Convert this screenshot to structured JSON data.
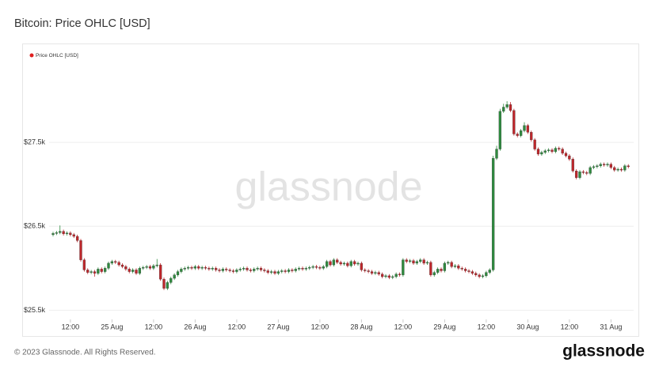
{
  "chart_data": {
    "type": "candlestick",
    "title": "Bitcoin: Price OHLC [USD]",
    "watermark": "glassnode",
    "footer": "© 2023 Glassnode. All Rights Reserved.",
    "logo": "glassnode",
    "x": [
      "24 Aug 07:00",
      "24 Aug 08:00",
      "24 Aug 09:00",
      "24 Aug 10:00",
      "24 Aug 11:00",
      "24 Aug 12:00",
      "24 Aug 13:00",
      "24 Aug 14:00",
      "24 Aug 15:00",
      "24 Aug 16:00",
      "24 Aug 17:00",
      "24 Aug 18:00",
      "24 Aug 19:00",
      "24 Aug 20:00",
      "24 Aug 21:00",
      "24 Aug 22:00",
      "24 Aug 23:00",
      "25 Aug 00:00",
      "25 Aug 01:00",
      "25 Aug 02:00",
      "25 Aug 03:00",
      "25 Aug 04:00",
      "25 Aug 05:00",
      "25 Aug 06:00",
      "25 Aug 07:00",
      "25 Aug 08:00",
      "25 Aug 09:00",
      "25 Aug 10:00",
      "25 Aug 11:00",
      "25 Aug 12:00",
      "25 Aug 13:00",
      "25 Aug 14:00",
      "25 Aug 15:00",
      "25 Aug 16:00",
      "25 Aug 17:00",
      "25 Aug 18:00",
      "25 Aug 19:00",
      "25 Aug 20:00",
      "25 Aug 21:00",
      "25 Aug 22:00",
      "25 Aug 23:00",
      "26 Aug 00:00",
      "26 Aug 01:00",
      "26 Aug 02:00",
      "26 Aug 03:00",
      "26 Aug 04:00",
      "26 Aug 05:00",
      "26 Aug 06:00",
      "26 Aug 07:00",
      "26 Aug 08:00",
      "26 Aug 09:00",
      "26 Aug 10:00",
      "26 Aug 11:00",
      "26 Aug 12:00",
      "26 Aug 13:00",
      "26 Aug 14:00",
      "26 Aug 15:00",
      "26 Aug 16:00",
      "26 Aug 17:00",
      "26 Aug 18:00",
      "26 Aug 19:00",
      "26 Aug 20:00",
      "26 Aug 21:00",
      "26 Aug 22:00",
      "26 Aug 23:00",
      "27 Aug 00:00",
      "27 Aug 01:00",
      "27 Aug 02:00",
      "27 Aug 03:00",
      "27 Aug 04:00",
      "27 Aug 05:00",
      "27 Aug 06:00",
      "27 Aug 07:00",
      "27 Aug 08:00",
      "27 Aug 09:00",
      "27 Aug 10:00",
      "27 Aug 11:00",
      "27 Aug 12:00",
      "27 Aug 13:00",
      "27 Aug 14:00",
      "27 Aug 15:00",
      "27 Aug 16:00",
      "27 Aug 17:00",
      "27 Aug 18:00",
      "27 Aug 19:00",
      "27 Aug 20:00",
      "27 Aug 21:00",
      "27 Aug 22:00",
      "27 Aug 23:00",
      "28 Aug 00:00",
      "28 Aug 01:00",
      "28 Aug 02:00",
      "28 Aug 03:00",
      "28 Aug 04:00",
      "28 Aug 05:00",
      "28 Aug 06:00",
      "28 Aug 07:00",
      "28 Aug 08:00",
      "28 Aug 09:00",
      "28 Aug 10:00",
      "28 Aug 11:00",
      "28 Aug 12:00",
      "28 Aug 13:00",
      "28 Aug 14:00",
      "28 Aug 15:00",
      "28 Aug 16:00",
      "28 Aug 17:00",
      "28 Aug 18:00",
      "28 Aug 19:00",
      "28 Aug 20:00",
      "28 Aug 21:00",
      "28 Aug 22:00",
      "28 Aug 23:00",
      "29 Aug 00:00",
      "29 Aug 01:00",
      "29 Aug 02:00",
      "29 Aug 03:00",
      "29 Aug 04:00",
      "29 Aug 05:00",
      "29 Aug 06:00",
      "29 Aug 07:00",
      "29 Aug 08:00",
      "29 Aug 09:00",
      "29 Aug 10:00",
      "29 Aug 11:00",
      "29 Aug 12:00",
      "29 Aug 13:00",
      "29 Aug 14:00",
      "29 Aug 15:00",
      "29 Aug 16:00",
      "29 Aug 17:00",
      "29 Aug 18:00",
      "29 Aug 19:00",
      "29 Aug 20:00",
      "29 Aug 21:00",
      "29 Aug 22:00",
      "29 Aug 23:00",
      "30 Aug 00:00",
      "30 Aug 01:00",
      "30 Aug 02:00",
      "30 Aug 03:00",
      "30 Aug 04:00",
      "30 Aug 05:00",
      "30 Aug 06:00",
      "30 Aug 07:00",
      "30 Aug 08:00",
      "30 Aug 09:00",
      "30 Aug 10:00",
      "30 Aug 11:00",
      "30 Aug 12:00",
      "30 Aug 13:00",
      "30 Aug 14:00",
      "30 Aug 15:00",
      "30 Aug 16:00",
      "30 Aug 17:00",
      "30 Aug 18:00",
      "30 Aug 19:00",
      "30 Aug 20:00",
      "30 Aug 21:00",
      "30 Aug 22:00",
      "30 Aug 23:00",
      "31 Aug 00:00",
      "31 Aug 01:00",
      "31 Aug 02:00",
      "31 Aug 03:00",
      "31 Aug 04:00",
      "31 Aug 05:00"
    ],
    "series": [
      {
        "name": "Price OHLC [USD]",
        "color": "#e02020",
        "up_color": "#2e8b3e",
        "down_color": "#c0262b",
        "open": [
          26400,
          26415,
          26425,
          26440,
          26410,
          26420,
          26400,
          26380,
          26330,
          26100,
          25980,
          25950,
          25960,
          25940,
          25990,
          25960,
          26000,
          26060,
          26080,
          26070,
          26040,
          26020,
          25990,
          25960,
          25980,
          25940,
          26000,
          26010,
          26020,
          26000,
          26030,
          26040,
          25870,
          25760,
          25830,
          25880,
          25920,
          25960,
          25990,
          26000,
          26010,
          26000,
          26020,
          26000,
          26010,
          26000,
          25990,
          26000,
          25980,
          25970,
          25990,
          25980,
          25970,
          25960,
          25980,
          25990,
          26000,
          25980,
          25970,
          25990,
          26000,
          25980,
          25970,
          25950,
          25960,
          25940,
          25960,
          25970,
          25960,
          25980,
          25970,
          25990,
          26000,
          25990,
          26000,
          26010,
          26020,
          26010,
          26000,
          26020,
          26080,
          26040,
          26100,
          26070,
          26050,
          26060,
          26030,
          26080,
          26050,
          26060,
          25980,
          25970,
          25960,
          25940,
          25950,
          25930,
          25900,
          25910,
          25890,
          25900,
          25930,
          25920,
          26100,
          26080,
          26090,
          26060,
          26080,
          26100,
          26060,
          26070,
          25920,
          25950,
          25990,
          25970,
          26060,
          26070,
          26020,
          26030,
          26000,
          25990,
          25970,
          25960,
          25940,
          25920,
          25900,
          25910,
          25950,
          25980,
          27310,
          27420,
          27870,
          27920,
          27950,
          27880,
          27600,
          27580,
          27640,
          27700,
          27620,
          27530,
          27420,
          27360,
          27380,
          27400,
          27410,
          27390,
          27430,
          27420,
          27370,
          27340,
          27300,
          27160,
          27080,
          27150,
          27140,
          27130,
          27200,
          27210,
          27220,
          27240,
          27230,
          27240,
          27200,
          27170,
          27180,
          27170,
          27220
        ],
        "high": [
          26435,
          26445,
          26510,
          26460,
          26440,
          26440,
          26420,
          26400,
          26350,
          26120,
          26000,
          25980,
          25980,
          26010,
          26010,
          26020,
          26080,
          26100,
          26100,
          26090,
          26060,
          26040,
          26010,
          26000,
          26000,
          26020,
          26030,
          26040,
          26040,
          26050,
          26110,
          26060,
          25890,
          25850,
          25900,
          25940,
          25980,
          26010,
          26020,
          26030,
          26030,
          26040,
          26040,
          26030,
          26030,
          26020,
          26020,
          26020,
          26000,
          26010,
          26010,
          26000,
          25990,
          26000,
          26010,
          26020,
          26020,
          26000,
          26010,
          26020,
          26020,
          26000,
          25990,
          25980,
          25980,
          25980,
          25990,
          25990,
          26000,
          26000,
          26010,
          26020,
          26020,
          26020,
          26030,
          26040,
          26040,
          26030,
          26040,
          26100,
          26100,
          26120,
          26120,
          26090,
          26080,
          26080,
          26100,
          26100,
          26080,
          26080,
          26000,
          25990,
          25980,
          25970,
          25970,
          25950,
          25930,
          25930,
          25920,
          25950,
          25950,
          26120,
          26120,
          26110,
          26110,
          26100,
          26120,
          26120,
          26090,
          26090,
          25970,
          26010,
          26010,
          26080,
          26090,
          26090,
          26050,
          26050,
          26020,
          26010,
          25990,
          25980,
          25960,
          25940,
          25930,
          25970,
          26000,
          27340,
          27460,
          27900,
          27960,
          27990,
          27980,
          27900,
          27620,
          27660,
          27740,
          27720,
          27640,
          27550,
          27440,
          27400,
          27420,
          27430,
          27430,
          27450,
          27450,
          27440,
          27390,
          27360,
          27320,
          27180,
          27170,
          27170,
          27160,
          27220,
          27230,
          27240,
          27260,
          27260,
          27260,
          27260,
          27220,
          27200,
          27200,
          27240,
          27240
        ],
        "low": [
          26380,
          26395,
          26405,
          26390,
          26390,
          26380,
          26360,
          26310,
          26080,
          25960,
          25930,
          25930,
          25900,
          25920,
          25940,
          25940,
          25980,
          26040,
          26050,
          26020,
          26000,
          25970,
          25940,
          25940,
          25920,
          25920,
          25980,
          25990,
          25980,
          25980,
          26010,
          25850,
          25740,
          25740,
          25810,
          25860,
          25900,
          25940,
          25970,
          25980,
          25980,
          25980,
          25980,
          25980,
          25980,
          25970,
          25970,
          25960,
          25950,
          25950,
          25960,
          25950,
          25940,
          25940,
          25960,
          25970,
          25960,
          25950,
          25950,
          25970,
          25960,
          25950,
          25930,
          25930,
          25920,
          25920,
          25940,
          25940,
          25940,
          25950,
          25950,
          25970,
          25970,
          25970,
          25980,
          25990,
          25990,
          25980,
          25980,
          26000,
          26020,
          26020,
          26050,
          26030,
          26030,
          26010,
          26010,
          26030,
          26030,
          25960,
          25950,
          25940,
          25920,
          25920,
          25910,
          25880,
          25880,
          25870,
          25870,
          25880,
          25900,
          25900,
          26060,
          26060,
          26040,
          26040,
          26060,
          26040,
          26040,
          25900,
          25900,
          25930,
          25950,
          25950,
          26040,
          26000,
          26000,
          25980,
          25970,
          25950,
          25940,
          25920,
          25900,
          25880,
          25880,
          25890,
          25930,
          25960,
          27290,
          27400,
          27850,
          27900,
          27860,
          27580,
          27560,
          27560,
          27620,
          27600,
          27510,
          27400,
          27340,
          27340,
          27360,
          27380,
          27370,
          27370,
          27400,
          27350,
          27320,
          27280,
          27140,
          27060,
          27060,
          27120,
          27110,
          27110,
          27180,
          27190,
          27200,
          27210,
          27210,
          27180,
          27150,
          27150,
          27150,
          27150,
          27190
        ],
        "close": [
          26415,
          26425,
          26440,
          26410,
          26420,
          26400,
          26380,
          26330,
          26100,
          25980,
          25950,
          25960,
          25940,
          25990,
          25960,
          26000,
          26060,
          26080,
          26070,
          26040,
          26020,
          25990,
          25960,
          25980,
          25940,
          26000,
          26010,
          26020,
          26000,
          26030,
          26040,
          25870,
          25760,
          25830,
          25880,
          25920,
          25960,
          25990,
          26000,
          26010,
          26000,
          26020,
          26000,
          26010,
          26000,
          25990,
          26000,
          25980,
          25970,
          25990,
          25980,
          25970,
          25960,
          25980,
          25990,
          26000,
          25980,
          25970,
          25990,
          26000,
          25980,
          25970,
          25950,
          25960,
          25940,
          25960,
          25970,
          25960,
          25980,
          25970,
          25990,
          26000,
          25990,
          26000,
          26010,
          26020,
          26010,
          26000,
          26020,
          26080,
          26040,
          26100,
          26070,
          26050,
          26060,
          26030,
          26080,
          26050,
          26060,
          25980,
          25970,
          25960,
          25940,
          25950,
          25930,
          25900,
          25910,
          25890,
          25900,
          25930,
          25920,
          26100,
          26080,
          26090,
          26060,
          26080,
          26100,
          26060,
          26070,
          25920,
          25950,
          25990,
          25970,
          26060,
          26070,
          26020,
          26030,
          26000,
          25990,
          25970,
          25960,
          25940,
          25920,
          25900,
          25910,
          25950,
          25980,
          27310,
          27420,
          27870,
          27920,
          27950,
          27880,
          27600,
          27580,
          27640,
          27700,
          27620,
          27530,
          27420,
          27360,
          27380,
          27400,
          27410,
          27390,
          27430,
          27420,
          27370,
          27340,
          27300,
          27160,
          27080,
          27150,
          27140,
          27130,
          27200,
          27210,
          27220,
          27240,
          27230,
          27240,
          27200,
          27170,
          27180,
          27170,
          27220,
          27210
        ]
      }
    ],
    "ylim": [
      25400,
      28650
    ],
    "yticks": [
      {
        "value": 25500,
        "label": "$25.5k"
      },
      {
        "value": 26500,
        "label": "$26.5k"
      },
      {
        "value": 27500,
        "label": "$27.5k"
      }
    ],
    "xticks": [
      {
        "value": "24 Aug 12:00",
        "label": "12:00"
      },
      {
        "value": "25 Aug 00:00",
        "label": "25 Aug"
      },
      {
        "value": "25 Aug 12:00",
        "label": "12:00"
      },
      {
        "value": "26 Aug 00:00",
        "label": "26 Aug"
      },
      {
        "value": "26 Aug 12:00",
        "label": "12:00"
      },
      {
        "value": "27 Aug 00:00",
        "label": "27 Aug"
      },
      {
        "value": "27 Aug 12:00",
        "label": "12:00"
      },
      {
        "value": "28 Aug 00:00",
        "label": "28 Aug"
      },
      {
        "value": "28 Aug 12:00",
        "label": "12:00"
      },
      {
        "value": "29 Aug 00:00",
        "label": "29 Aug"
      },
      {
        "value": "29 Aug 12:00",
        "label": "12:00"
      },
      {
        "value": "30 Aug 00:00",
        "label": "30 Aug"
      },
      {
        "value": "30 Aug 12:00",
        "label": "12:00"
      },
      {
        "value": "31 Aug 00:00",
        "label": "31 Aug"
      }
    ],
    "grid": true,
    "legend": "top-left"
  }
}
